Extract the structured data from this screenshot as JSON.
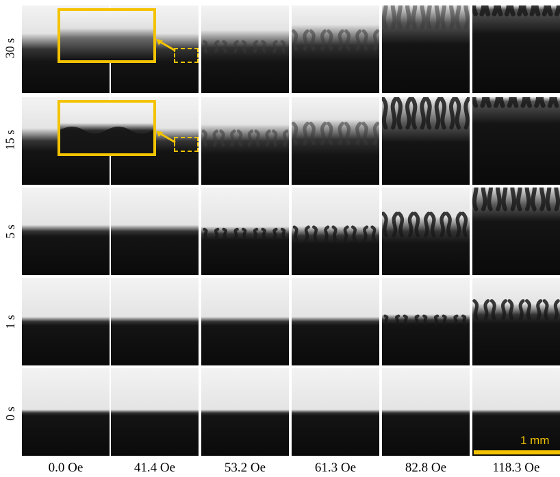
{
  "row_labels": [
    "30 s",
    "15 s",
    "5 s",
    "1 s",
    "0 s"
  ],
  "column_labels": [
    "0.0 Oe",
    "41.4 Oe",
    "53.2 Oe",
    "61.3 Oe",
    "82.8 Oe",
    "118.3 Oe"
  ],
  "scale_bar": {
    "label": "1 mm"
  },
  "colors": {
    "highlight": "#f4c300",
    "fluid_dark": "#0a0a0a",
    "background_light": "#f2f2f2"
  },
  "panels": {
    "interface_level": [
      [
        0.5,
        0.5,
        0.52,
        0.55,
        0.8,
        0.95
      ],
      [
        0.5,
        0.5,
        0.5,
        0.52,
        0.7,
        0.95
      ],
      [
        0.5,
        0.5,
        0.47,
        0.45,
        0.5,
        0.8
      ],
      [
        0.5,
        0.5,
        0.5,
        0.5,
        0.52,
        0.58
      ],
      [
        0.49,
        0.49,
        0.49,
        0.49,
        0.49,
        0.49
      ]
    ],
    "finger_amplitude": [
      [
        0.0,
        0.0,
        0.15,
        0.35,
        0.7,
        0.95
      ],
      [
        0.0,
        0.0,
        0.25,
        0.4,
        0.65,
        0.9
      ],
      [
        0.0,
        0.0,
        0.12,
        0.22,
        0.45,
        0.7
      ],
      [
        0.0,
        0.0,
        0.0,
        0.0,
        0.1,
        0.35
      ],
      [
        0.0,
        0.0,
        0.0,
        0.0,
        0.0,
        0.0
      ]
    ],
    "blur": [
      [
        0.9,
        0.9,
        0.8,
        0.7,
        0.6,
        0.5
      ],
      [
        0.7,
        0.7,
        0.6,
        0.6,
        0.5,
        0.4
      ],
      [
        0.3,
        0.3,
        0.2,
        0.2,
        0.2,
        0.2
      ],
      [
        0.2,
        0.2,
        0.2,
        0.2,
        0.1,
        0.1
      ],
      [
        0.1,
        0.1,
        0.1,
        0.1,
        0.1,
        0.1
      ]
    ]
  }
}
